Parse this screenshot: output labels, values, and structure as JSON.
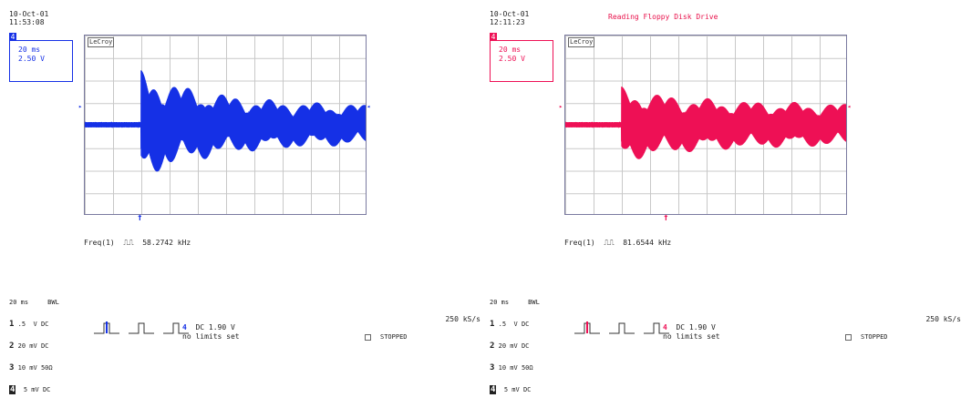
{
  "scopes": [
    {
      "date": "10-Oct-01",
      "time": "11:53:08",
      "title": "",
      "channel_number": "4",
      "timebase": "20 ms",
      "volts_per_div": "2.50 V",
      "lecroy_label": "LeCroy",
      "freq_label": "Freq(1)",
      "freq_value": "58.2742 kHz",
      "trace_color": "#1530e6",
      "bottom": {
        "timebase": "20 ms",
        "bwl": "BWL",
        "ch1": {
          "num": "1",
          "volt": ".5  V",
          "coupling": "DC"
        },
        "ch2": {
          "num": "2",
          "volt": "20 mV",
          "coupling": "DC"
        },
        "ch3": {
          "num": "3",
          "volt": "10 mV",
          "coupling": "50Ω"
        },
        "ch4": {
          "num": "4",
          "volt": "5 mV",
          "coupling": "DC"
        },
        "trigger_channel": "4",
        "trigger_info": "DC 1.90 V",
        "limits": "no limits set",
        "sample_rate": "250 kS/s",
        "state": "STOPPED"
      }
    },
    {
      "date": "10-Oct-01",
      "time": "12:11:23",
      "title": "Reading Floppy Disk Drive",
      "channel_number": "4",
      "timebase": "20 ms",
      "volts_per_div": "2.50 V",
      "lecroy_label": "LeCroy",
      "freq_label": "Freq(1)",
      "freq_value": "81.6544 kHz",
      "trace_color": "#ee1055",
      "bottom": {
        "timebase": "20 ms",
        "bwl": "BWL",
        "ch1": {
          "num": "1",
          "volt": ".5  V",
          "coupling": "DC"
        },
        "ch2": {
          "num": "2",
          "volt": "20 mV",
          "coupling": "DC"
        },
        "ch3": {
          "num": "3",
          "volt": "10 mV",
          "coupling": "50Ω"
        },
        "ch4": {
          "num": "4",
          "volt": "5 mV",
          "coupling": "DC"
        },
        "trigger_channel": "4",
        "trigger_info": "DC 1.90 V",
        "limits": "no limits set",
        "sample_rate": "250 kS/s",
        "state": "STOPPED"
      }
    }
  ],
  "ui": {
    "marker_left": "▸",
    "marker_right": "◂",
    "trigger_arrow": "↑",
    "pulse_icon": "⎍⎍"
  }
}
